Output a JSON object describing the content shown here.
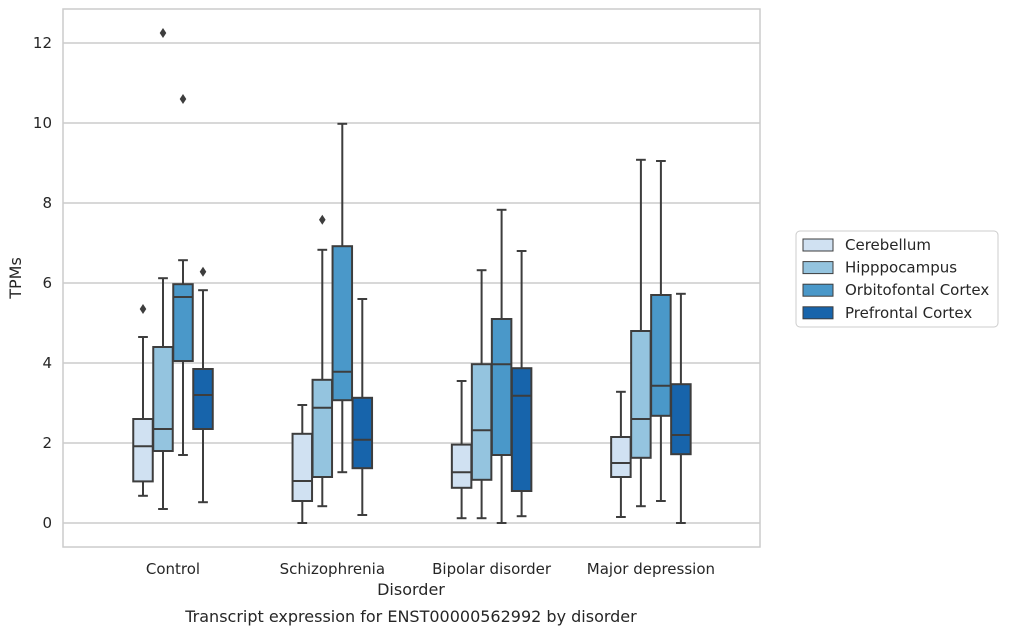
{
  "caption": "Transcript expression for ENST00000562992 by disorder",
  "chart_data": {
    "type": "box",
    "title": "",
    "xlabel": "Disorder",
    "ylabel": "TPMs",
    "ylim": [
      -0.6,
      12.85
    ],
    "yticks": [
      0,
      2,
      4,
      6,
      8,
      10,
      12
    ],
    "categories": [
      "Control",
      "Schizophrenia",
      "Bipolar disorder",
      "Major depression"
    ],
    "grid": "horizontal",
    "legend_position": "right",
    "series": [
      {
        "name": "Cerebellum",
        "color": "#d0e1f2",
        "boxes": [
          {
            "whisker_low": 0.68,
            "q1": 1.04,
            "median": 1.92,
            "q3": 2.6,
            "whisker_high": 4.65,
            "outliers": [
              5.35
            ]
          },
          {
            "whisker_low": 0.0,
            "q1": 0.55,
            "median": 1.05,
            "q3": 2.23,
            "whisker_high": 2.95,
            "outliers": []
          },
          {
            "whisker_low": 0.12,
            "q1": 0.88,
            "median": 1.27,
            "q3": 1.96,
            "whisker_high": 3.55,
            "outliers": []
          },
          {
            "whisker_low": 0.15,
            "q1": 1.15,
            "median": 1.5,
            "q3": 2.15,
            "whisker_high": 3.28,
            "outliers": []
          }
        ]
      },
      {
        "name": "Hipppocampus",
        "color": "#94c4df",
        "boxes": [
          {
            "whisker_low": 0.35,
            "q1": 1.8,
            "median": 2.35,
            "q3": 4.4,
            "whisker_high": 6.12,
            "outliers": [
              12.25
            ]
          },
          {
            "whisker_low": 0.42,
            "q1": 1.15,
            "median": 2.88,
            "q3": 3.58,
            "whisker_high": 6.83,
            "outliers": [
              7.58
            ]
          },
          {
            "whisker_low": 0.12,
            "q1": 1.08,
            "median": 2.32,
            "q3": 3.97,
            "whisker_high": 6.32,
            "outliers": []
          },
          {
            "whisker_low": 0.42,
            "q1": 1.63,
            "median": 2.6,
            "q3": 4.8,
            "whisker_high": 9.08,
            "outliers": []
          }
        ]
      },
      {
        "name": "Orbitofontal Cortex",
        "color": "#4a98c9",
        "boxes": [
          {
            "whisker_low": 1.7,
            "q1": 4.05,
            "median": 5.65,
            "q3": 5.97,
            "whisker_high": 6.57,
            "outliers": [
              10.6
            ]
          },
          {
            "whisker_low": 1.27,
            "q1": 3.07,
            "median": 3.78,
            "q3": 6.92,
            "whisker_high": 9.98,
            "outliers": []
          },
          {
            "whisker_low": 0.0,
            "q1": 1.7,
            "median": 3.97,
            "q3": 5.1,
            "whisker_high": 7.83,
            "outliers": []
          },
          {
            "whisker_low": 0.55,
            "q1": 2.68,
            "median": 3.43,
            "q3": 5.7,
            "whisker_high": 9.05,
            "outliers": []
          }
        ]
      },
      {
        "name": "Prefrontal Cortex",
        "color": "#1764ab",
        "boxes": [
          {
            "whisker_low": 0.52,
            "q1": 2.35,
            "median": 3.2,
            "q3": 3.85,
            "whisker_high": 5.82,
            "outliers": [
              6.28
            ]
          },
          {
            "whisker_low": 0.2,
            "q1": 1.37,
            "median": 2.08,
            "q3": 3.13,
            "whisker_high": 5.6,
            "outliers": []
          },
          {
            "whisker_low": 0.17,
            "q1": 0.8,
            "median": 3.18,
            "q3": 3.87,
            "whisker_high": 6.8,
            "outliers": []
          },
          {
            "whisker_low": 0.0,
            "q1": 1.72,
            "median": 2.2,
            "q3": 3.47,
            "whisker_high": 5.73,
            "outliers": []
          }
        ]
      }
    ]
  },
  "style": {
    "grid_color": "#cccccc",
    "frame_color": "#cccccc",
    "line_color": "#3d3d3d",
    "text_color": "#262626"
  }
}
